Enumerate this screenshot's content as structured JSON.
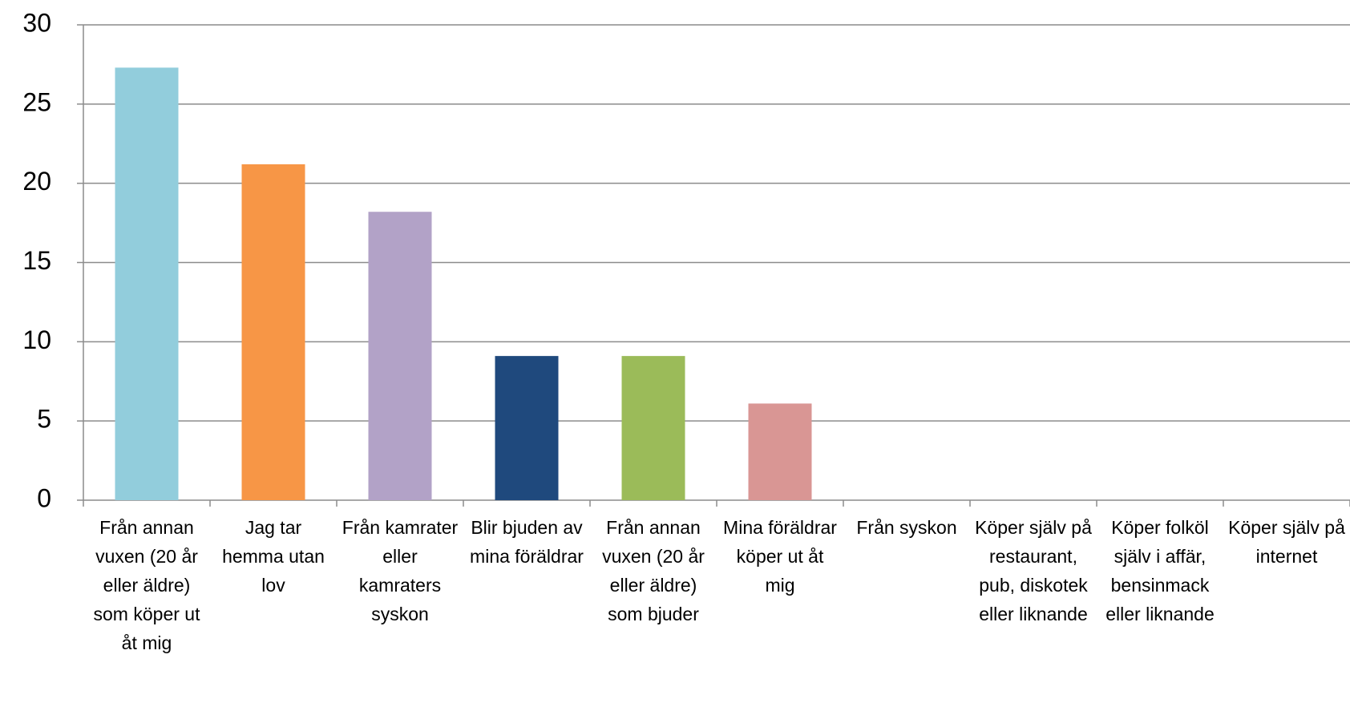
{
  "chart_data": {
    "type": "bar",
    "categories": [
      "Från annan vuxen (20 år eller äldre) som köper ut åt mig",
      "Jag tar hemma utan lov",
      "Från kamrater eller kamraters syskon",
      "Blir bjuden av mina föräldrar",
      "Från annan vuxen (20 år eller äldre) som bjuder",
      "Mina föräldrar köper ut åt mig",
      "Från syskon",
      "Köper själv på restaurant, pub, diskotek eller liknande",
      "Köper folköl själv i affär, bensinmack eller liknande",
      "Köper själv på internet"
    ],
    "values": [
      27.3,
      21.2,
      18.2,
      9.1,
      9.1,
      6.1,
      0,
      0,
      0,
      0
    ],
    "colors": [
      "#92cddc",
      "#f79646",
      "#b2a2c7",
      "#1f497d",
      "#9bbb59",
      "#d99694",
      "#4bacc6",
      "#4f81bd",
      "#c0504d",
      "#8064a2"
    ],
    "ylim": [
      0,
      30
    ],
    "yticks": [
      0,
      5,
      10,
      15,
      20,
      25,
      30
    ],
    "grid": true
  }
}
